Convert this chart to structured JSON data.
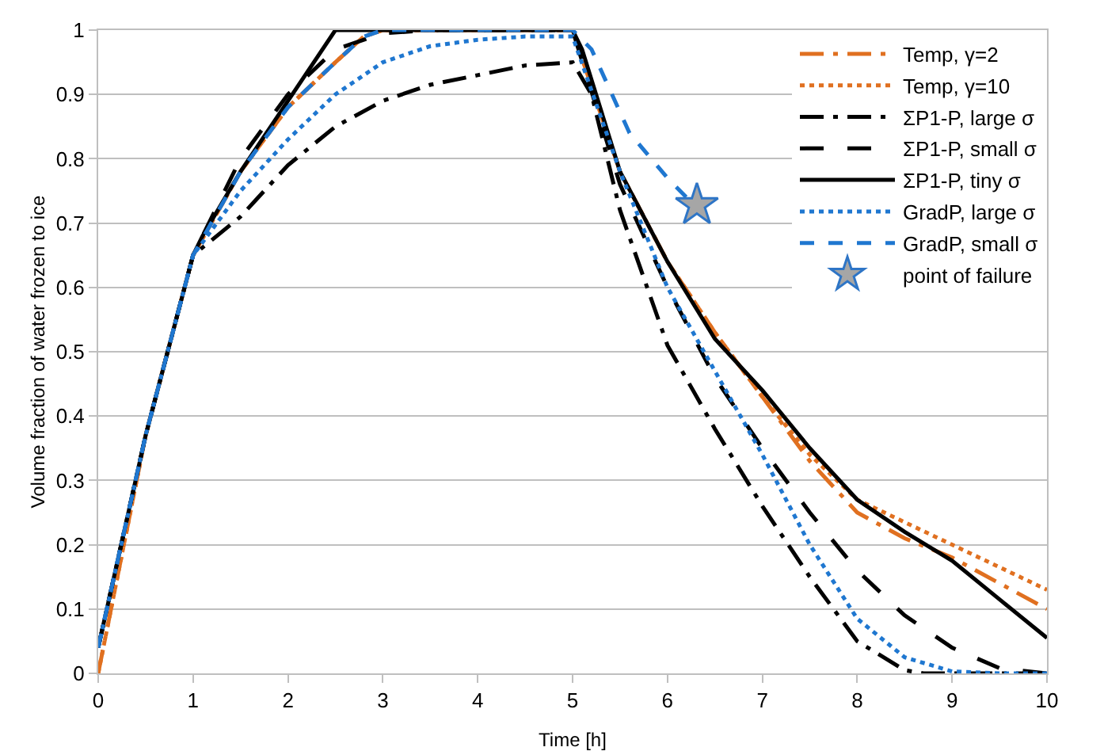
{
  "chart_data": {
    "type": "line",
    "xlabel": "Time [h]",
    "ylabel": "Volume fraction of water frozen to ice",
    "xlim": [
      0,
      10
    ],
    "xticks": [
      0,
      1,
      2,
      3,
      4,
      5,
      6,
      7,
      8,
      9,
      10
    ],
    "ylim": [
      0,
      1
    ],
    "yticks": [
      0,
      0.1,
      0.2,
      0.3,
      0.4,
      0.5,
      0.6,
      0.7,
      0.8,
      0.9,
      1
    ],
    "grid": "y",
    "legend": "top right",
    "marker": "none",
    "series": [
      {
        "name": "Temp, γ=2",
        "color": "#e07020",
        "line_style": "dashdot",
        "x": [
          0,
          0.5,
          1,
          1.5,
          2,
          2.5,
          2.8,
          3,
          5,
          5.5,
          6,
          6.5,
          7,
          7.5,
          8,
          8.5,
          9,
          9.5,
          10
        ],
        "values": [
          0,
          0.37,
          0.65,
          0.78,
          0.88,
          0.95,
          0.99,
          1,
          1,
          0.78,
          0.64,
          0.53,
          0.43,
          0.33,
          0.25,
          0.21,
          0.18,
          0.14,
          0.1
        ]
      },
      {
        "name": "Temp, γ=10",
        "color": "#e07020",
        "line_style": "dotted",
        "x": [
          0,
          0.5,
          1,
          1.5,
          2,
          2.5,
          2.8,
          3,
          5,
          5.5,
          6,
          6.5,
          7,
          7.5,
          8,
          8.5,
          9,
          9.5,
          10
        ],
        "values": [
          0,
          0.37,
          0.65,
          0.78,
          0.88,
          0.95,
          0.99,
          1,
          1,
          0.78,
          0.64,
          0.53,
          0.43,
          0.34,
          0.27,
          0.235,
          0.2,
          0.165,
          0.13
        ]
      },
      {
        "name": "ΣP1-P, large σ",
        "color": "#000000",
        "line_style": "dashdot",
        "x": [
          0,
          0.5,
          1,
          1.5,
          2,
          2.5,
          3,
          3.5,
          4,
          4.5,
          5,
          5.2,
          5.5,
          6,
          6.5,
          7,
          7.5,
          8,
          8.5,
          8.7,
          10
        ],
        "values": [
          0.04,
          0.37,
          0.65,
          0.71,
          0.79,
          0.85,
          0.89,
          0.915,
          0.93,
          0.945,
          0.95,
          0.9,
          0.72,
          0.51,
          0.38,
          0.26,
          0.15,
          0.05,
          0.005,
          0,
          0
        ]
      },
      {
        "name": "ΣP1-P, small σ",
        "color": "#000000",
        "line_style": "longdash",
        "x": [
          0,
          0.5,
          1,
          1.5,
          2,
          2.5,
          3,
          3.5,
          5,
          5.5,
          6,
          6.5,
          7,
          7.5,
          8,
          8.5,
          9,
          9.5,
          10
        ],
        "values": [
          0.04,
          0.37,
          0.65,
          0.8,
          0.9,
          0.97,
          0.995,
          1,
          1,
          0.76,
          0.6,
          0.46,
          0.35,
          0.25,
          0.16,
          0.09,
          0.04,
          0.008,
          0
        ]
      },
      {
        "name": "ΣP1-P, tiny σ",
        "color": "#000000",
        "line_style": "solid",
        "x": [
          0,
          0.5,
          1,
          1.1,
          1.5,
          2,
          2.5,
          5,
          5.1,
          5.5,
          6,
          6.5,
          7,
          7.5,
          8,
          8.5,
          9,
          9.5,
          10
        ],
        "values": [
          0.04,
          0.37,
          0.65,
          0.68,
          0.78,
          0.89,
          1,
          1,
          0.97,
          0.78,
          0.64,
          0.52,
          0.44,
          0.35,
          0.27,
          0.22,
          0.175,
          0.115,
          0.055
        ]
      },
      {
        "name": "GradP, large σ",
        "color": "#1f77d0",
        "line_style": "dotted",
        "x": [
          0,
          0.5,
          1,
          1.2,
          1.5,
          2,
          2.5,
          3,
          3.5,
          4,
          4.5,
          5,
          5.5,
          6,
          6.5,
          7,
          7.5,
          8,
          8.5,
          9,
          9.5,
          10
        ],
        "values": [
          0.04,
          0.37,
          0.65,
          0.69,
          0.75,
          0.83,
          0.9,
          0.95,
          0.975,
          0.985,
          0.99,
          0.99,
          0.78,
          0.6,
          0.47,
          0.34,
          0.2,
          0.085,
          0.025,
          0.003,
          0,
          0
        ]
      },
      {
        "name": "GradP, small σ",
        "color": "#1f77d0",
        "line_style": "dashed",
        "x": [
          0,
          0.5,
          1,
          1.5,
          2,
          2.5,
          2.8,
          3,
          5,
          5.2,
          5.6,
          6,
          6.3
        ],
        "values": [
          0.04,
          0.37,
          0.65,
          0.78,
          0.88,
          0.95,
          0.99,
          1,
          1,
          0.97,
          0.84,
          0.77,
          0.725
        ]
      },
      {
        "name": "point of failure",
        "type": "scatter",
        "marker": "star",
        "color": "#a6a6a6",
        "x": [
          6.31
        ],
        "values": [
          0.728
        ]
      }
    ]
  }
}
